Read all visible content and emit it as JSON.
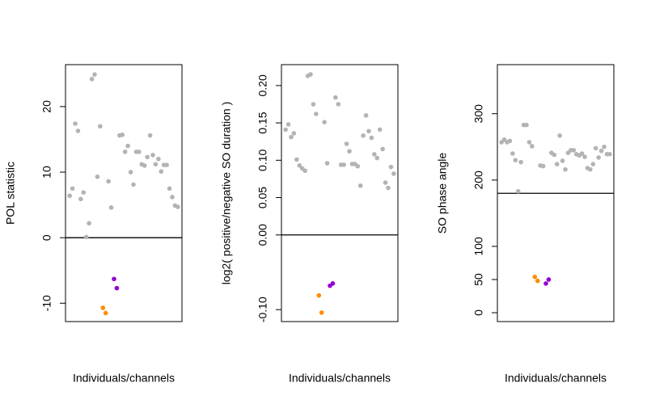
{
  "chart_data": [
    {
      "type": "scatter",
      "ylabel": "POL statistic",
      "xlabel": "Individuals/channels",
      "xlim": [
        -0.5,
        41.5
      ],
      "ylim": [
        -12.8,
        26.4
      ],
      "yticks": [
        -10,
        0,
        10,
        20
      ],
      "hline": 0,
      "series": [
        {
          "color": "#b3b3b3",
          "x": [
            1,
            2,
            3,
            4,
            5,
            6,
            7,
            8,
            9,
            10,
            11,
            12,
            15,
            16,
            19,
            20,
            21,
            22,
            23,
            24,
            25,
            26,
            27,
            28,
            29,
            30,
            31,
            32,
            33,
            34,
            35,
            36,
            37,
            38,
            39,
            40
          ],
          "values": [
            6.4,
            7.5,
            17.4,
            16.3,
            5.9,
            6.9,
            0.1,
            2.2,
            24.2,
            24.9,
            9.3,
            17.0,
            8.6,
            4.6,
            15.6,
            15.7,
            13.1,
            14.0,
            10.0,
            8.1,
            13.1,
            13.1,
            11.2,
            11.0,
            12.3,
            15.6,
            12.6,
            11.2,
            12.0,
            10.1,
            11.1,
            11.1,
            7.5,
            6.2,
            4.9,
            4.7
          ]
        },
        {
          "color": "#ff8c00",
          "x": [
            13,
            14
          ],
          "values": [
            -10.7,
            -11.5
          ]
        },
        {
          "color": "#9400d3",
          "x": [
            17,
            18
          ],
          "values": [
            -6.3,
            -7.7
          ]
        }
      ]
    },
    {
      "type": "scatter",
      "ylabel": "log2( positive/negative SO duration )",
      "xlabel": "Individuals/channels",
      "xlim": [
        -0.5,
        41.5
      ],
      "ylim": [
        -0.116,
        0.228
      ],
      "yticks": [
        {
          "value": -0.1,
          "label": "-0.10"
        },
        {
          "value": 0,
          "label": "0.00"
        },
        0.05,
        {
          "value": 0.1,
          "label": "0.10"
        },
        0.15,
        {
          "value": 0.2,
          "label": "0.20"
        }
      ],
      "hline": 0,
      "series": [
        {
          "color": "#b3b3b3",
          "x": [
            1,
            2,
            3,
            4,
            5,
            6,
            7,
            8,
            9,
            10,
            11,
            12,
            15,
            16,
            19,
            20,
            21,
            22,
            23,
            24,
            25,
            26,
            27,
            28,
            29,
            30,
            31,
            32,
            33,
            34,
            35,
            36,
            37,
            38,
            39,
            40
          ],
          "values": [
            0.141,
            0.148,
            0.131,
            0.136,
            0.101,
            0.093,
            0.089,
            0.086,
            0.213,
            0.215,
            0.175,
            0.162,
            0.151,
            0.096,
            0.184,
            0.175,
            0.094,
            0.094,
            0.122,
            0.112,
            0.095,
            0.095,
            0.092,
            0.066,
            0.133,
            0.16,
            0.139,
            0.13,
            0.108,
            0.103,
            0.141,
            0.115,
            0.07,
            0.063,
            0.091,
            0.082
          ]
        },
        {
          "color": "#ff8c00",
          "x": [
            13,
            14
          ],
          "values": [
            -0.081,
            -0.104
          ]
        },
        {
          "color": "#9400d3",
          "x": [
            17,
            18
          ],
          "values": [
            -0.068,
            -0.065
          ]
        }
      ]
    },
    {
      "type": "scatter",
      "ylabel": "SO phase angle",
      "xlabel": "Individuals/channels",
      "xlim": [
        -0.5,
        41.5
      ],
      "ylim": [
        -13.4,
        374
      ],
      "yticks": [
        0,
        50,
        100,
        200,
        300
      ],
      "hline": 180,
      "series": [
        {
          "color": "#b3b3b3",
          "x": [
            1,
            2,
            3,
            4,
            5,
            6,
            7,
            8,
            9,
            10,
            11,
            12,
            15,
            16,
            19,
            20,
            21,
            22,
            23,
            24,
            25,
            26,
            27,
            28,
            29,
            30,
            31,
            32,
            33,
            34,
            35,
            36,
            37,
            38,
            39,
            40
          ],
          "values": [
            257,
            261,
            257,
            259,
            240,
            230,
            183,
            227,
            283,
            283,
            257,
            251,
            222,
            221,
            241,
            238,
            224,
            267,
            229,
            216,
            241,
            245,
            245,
            239,
            237,
            240,
            235,
            218,
            216,
            224,
            248,
            234,
            244,
            250,
            239,
            239
          ]
        },
        {
          "color": "#ff8c00",
          "x": [
            13,
            14
          ],
          "values": [
            54,
            48
          ]
        },
        {
          "color": "#9400d3",
          "x": [
            17,
            18
          ],
          "values": [
            44,
            50
          ]
        }
      ]
    }
  ]
}
